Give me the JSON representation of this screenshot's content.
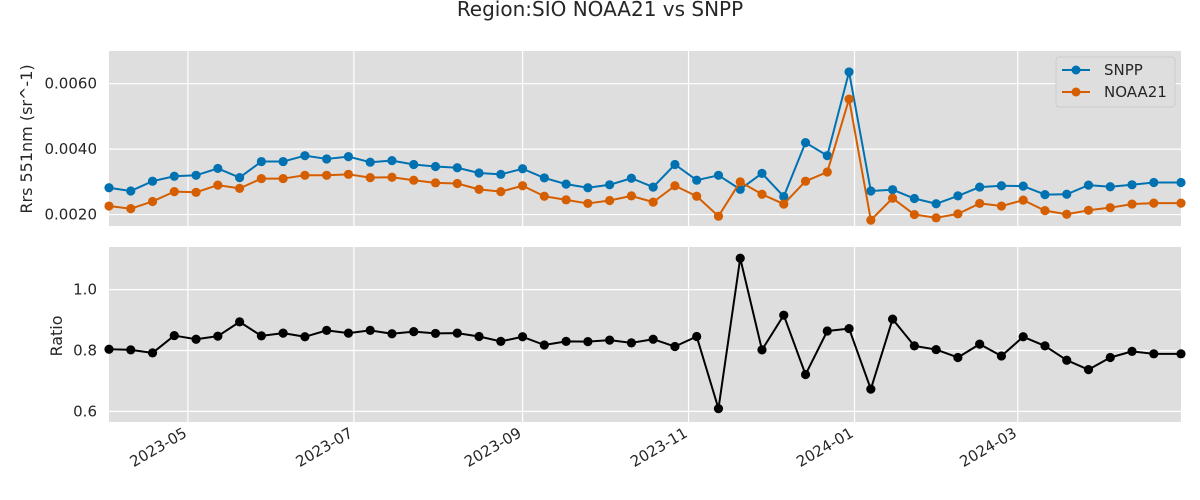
{
  "chart_data": [
    {
      "type": "line",
      "title": "Region:SIO NOAA21 vs SNPP",
      "ylabel": "Rrs 551nm (sr^-1)",
      "xlabel": "",
      "ylim": [
        0.00165,
        0.007
      ],
      "yticks": [
        "0.0020",
        "0.0040",
        "0.0060"
      ],
      "ytick_values": [
        0.002,
        0.004,
        0.006
      ],
      "xlim": [
        "2023-04-02",
        "2024-04-30"
      ],
      "xticks": [
        "2023-05",
        "2023-07",
        "2023-09",
        "2023-11",
        "2024-01",
        "2024-03"
      ],
      "xtick_values": [
        "2023-05-01",
        "2023-07-01",
        "2023-09-01",
        "2023-11-01",
        "2024-01-01",
        "2024-03-01"
      ],
      "grid": true,
      "legend": "top-right",
      "dates": [
        "2023-04-02",
        "2023-04-10",
        "2023-04-18",
        "2023-04-26",
        "2023-05-04",
        "2023-05-12",
        "2023-05-20",
        "2023-05-28",
        "2023-06-05",
        "2023-06-13",
        "2023-06-21",
        "2023-06-29",
        "2023-07-07",
        "2023-07-15",
        "2023-07-23",
        "2023-07-31",
        "2023-08-08",
        "2023-08-16",
        "2023-08-24",
        "2023-09-01",
        "2023-09-09",
        "2023-09-17",
        "2023-09-25",
        "2023-10-03",
        "2023-10-11",
        "2023-10-19",
        "2023-10-27",
        "2023-11-04",
        "2023-11-12",
        "2023-11-20",
        "2023-11-28",
        "2023-12-06",
        "2023-12-14",
        "2023-12-22",
        "2023-12-30",
        "2024-01-07",
        "2024-01-15",
        "2024-01-23",
        "2024-01-31",
        "2024-02-08",
        "2024-02-16",
        "2024-02-24",
        "2024-03-03",
        "2024-03-11",
        "2024-03-19",
        "2024-03-27",
        "2024-04-04",
        "2024-04-12",
        "2024-04-20",
        "2024-04-30"
      ],
      "series": [
        {
          "name": "SNPP",
          "color": "#0072b2",
          "values": [
            0.00282,
            0.00272,
            0.00302,
            0.00317,
            0.0032,
            0.00341,
            0.00313,
            0.00362,
            0.00362,
            0.0038,
            0.0037,
            0.00377,
            0.0036,
            0.00365,
            0.00353,
            0.00347,
            0.00343,
            0.00327,
            0.00323,
            0.0034,
            0.00312,
            0.00293,
            0.00282,
            0.00291,
            0.00311,
            0.00284,
            0.00353,
            0.00305,
            0.0032,
            0.00277,
            0.00326,
            0.00255,
            0.0042,
            0.0038,
            0.00636,
            0.00272,
            0.00276,
            0.00249,
            0.00233,
            0.00257,
            0.00284,
            0.00288,
            0.00287,
            0.00261,
            0.00262,
            0.0029,
            0.00285,
            0.00291,
            0.00298,
            0.00298
          ]
        },
        {
          "name": "NOAA21",
          "color": "#d55e00",
          "values": [
            0.00226,
            0.00218,
            0.0024,
            0.0027,
            0.00268,
            0.0029,
            0.0028,
            0.0031,
            0.0031,
            0.0032,
            0.0032,
            0.00323,
            0.00313,
            0.00314,
            0.00305,
            0.00297,
            0.00295,
            0.00277,
            0.0027,
            0.00288,
            0.00256,
            0.00245,
            0.00234,
            0.00243,
            0.00257,
            0.00238,
            0.00288,
            0.00256,
            0.00195,
            0.003,
            0.00262,
            0.00232,
            0.00302,
            0.0033,
            0.00553,
            0.00183,
            0.0025,
            0.002,
            0.0019,
            0.00202,
            0.00234,
            0.00226,
            0.00244,
            0.00212,
            0.00201,
            0.00213,
            0.00221,
            0.00232,
            0.00235,
            0.00235
          ]
        }
      ]
    },
    {
      "type": "line",
      "ylabel": "Ratio",
      "xlabel": "",
      "ylim": [
        0.565,
        1.14
      ],
      "yticks": [
        "0.6",
        "0.8",
        "1.0"
      ],
      "ytick_values": [
        0.6,
        0.8,
        1.0
      ],
      "xlim": [
        "2023-04-02",
        "2024-04-30"
      ],
      "xticks": [
        "2023-05",
        "2023-07",
        "2023-09",
        "2023-11",
        "2024-01",
        "2024-03"
      ],
      "xtick_values": [
        "2023-05-01",
        "2023-07-01",
        "2023-09-01",
        "2023-11-01",
        "2024-01-01",
        "2024-03-01"
      ],
      "grid": true,
      "dates": [
        "2023-04-02",
        "2023-04-10",
        "2023-04-18",
        "2023-04-26",
        "2023-05-04",
        "2023-05-12",
        "2023-05-20",
        "2023-05-28",
        "2023-06-05",
        "2023-06-13",
        "2023-06-21",
        "2023-06-29",
        "2023-07-07",
        "2023-07-15",
        "2023-07-23",
        "2023-07-31",
        "2023-08-08",
        "2023-08-16",
        "2023-08-24",
        "2023-09-01",
        "2023-09-09",
        "2023-09-17",
        "2023-09-25",
        "2023-10-03",
        "2023-10-11",
        "2023-10-19",
        "2023-10-27",
        "2023-11-04",
        "2023-11-12",
        "2023-11-20",
        "2023-11-28",
        "2023-12-06",
        "2023-12-14",
        "2023-12-22",
        "2023-12-30",
        "2024-01-07",
        "2024-01-15",
        "2024-01-23",
        "2024-01-31",
        "2024-02-08",
        "2024-02-16",
        "2024-02-24",
        "2024-03-03",
        "2024-03-11",
        "2024-03-19",
        "2024-03-27",
        "2024-04-04",
        "2024-04-12",
        "2024-04-20",
        "2024-04-30"
      ],
      "series": [
        {
          "color": "#000000",
          "values": [
            0.804,
            0.802,
            0.792,
            0.849,
            0.837,
            0.847,
            0.894,
            0.848,
            0.857,
            0.845,
            0.866,
            0.857,
            0.866,
            0.855,
            0.862,
            0.856,
            0.857,
            0.846,
            0.83,
            0.845,
            0.818,
            0.83,
            0.829,
            0.834,
            0.825,
            0.837,
            0.813,
            0.846,
            0.609,
            1.103,
            0.802,
            0.916,
            0.721,
            0.864,
            0.872,
            0.673,
            0.903,
            0.815,
            0.803,
            0.777,
            0.821,
            0.782,
            0.845,
            0.815,
            0.768,
            0.737,
            0.777,
            0.797,
            0.789,
            0.789
          ]
        }
      ]
    }
  ]
}
